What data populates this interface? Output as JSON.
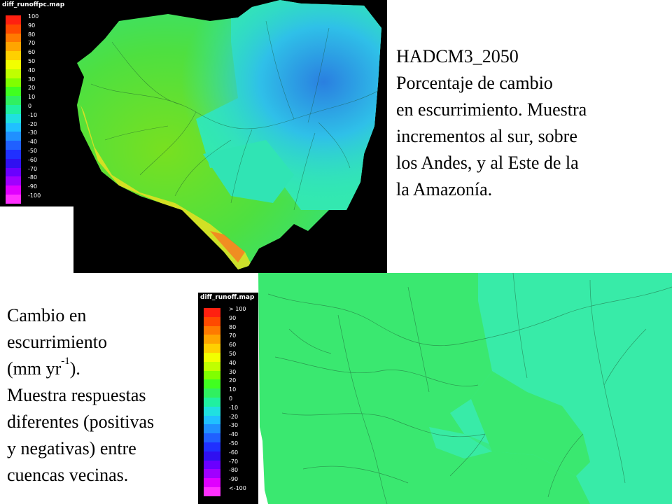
{
  "map1": {
    "title": "diff_runoffpc.map",
    "legend_ticks": [
      "100",
      "90",
      "80",
      "70",
      "60",
      "50",
      "40",
      "30",
      "20",
      "10",
      "0",
      "-10",
      "-20",
      "-30",
      "-40",
      "-50",
      "-60",
      "-70",
      "-80",
      "-90",
      "-100"
    ]
  },
  "map2": {
    "title": "diff_runoff.map",
    "legend_ticks": [
      "> 100",
      "90",
      "80",
      "70",
      "60",
      "50",
      "40",
      "30",
      "20",
      "10",
      "0",
      "-10",
      "-20",
      "-30",
      "-40",
      "-50",
      "-60",
      "-70",
      "-80",
      "-90",
      "<-100"
    ]
  },
  "legend_colors": [
    "#ff2010",
    "#ff4a00",
    "#ff7a00",
    "#ffa500",
    "#ffd000",
    "#f2ff00",
    "#c0ff00",
    "#80ff00",
    "#40ff20",
    "#30f060",
    "#20f0a0",
    "#20e0e0",
    "#20c0ff",
    "#2090ff",
    "#2060ff",
    "#2030ff",
    "#3010f0",
    "#6a00ff",
    "#a000ff",
    "#e000ff",
    "#ff30ff"
  ],
  "caption_top": {
    "lines": [
      "HADCM3_2050",
      "Porcentaje de cambio",
      "en escurrimiento.  Muestra",
      "incrementos  al sur, sobre",
      "los Andes,  y al Este de la",
      "la Amazonía."
    ]
  },
  "caption_bottom": {
    "line1": "Cambio en",
    "line2": "escurrimiento",
    "line3_pre": "(mm yr",
    "line3_sup": "-1",
    "line3_post": ").",
    "line4": "Muestra respuestas",
    "line5": "diferentes (positivas",
    "line6": "y negativas)  entre",
    "line7": "cuencas vecinas."
  }
}
